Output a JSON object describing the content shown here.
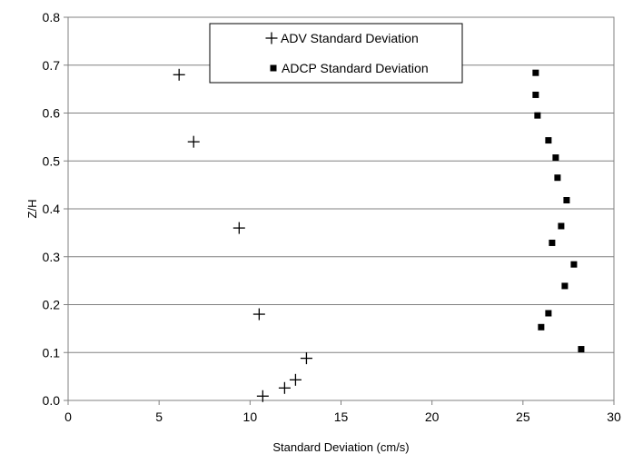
{
  "chart_data": {
    "type": "scatter",
    "title": "",
    "xlabel": "Standard Deviation (cm/s)",
    "ylabel": "Z/H",
    "xlim": [
      0,
      30
    ],
    "ylim": [
      0,
      0.8
    ],
    "xticks": [
      "0",
      "5",
      "10",
      "15",
      "20",
      "25",
      "30"
    ],
    "yticks": [
      "0.0",
      "0.1",
      "0.2",
      "0.3",
      "0.4",
      "0.5",
      "0.6",
      "0.7",
      "0.8"
    ],
    "grid": "horizontal",
    "legend_position": "top-center",
    "series": [
      {
        "name": "ADV Standard Deviation",
        "marker": "plus",
        "color": "#000000",
        "points": [
          [
            6.1,
            0.68
          ],
          [
            6.9,
            0.54
          ],
          [
            9.4,
            0.36
          ],
          [
            10.5,
            0.18
          ],
          [
            13.1,
            0.088
          ],
          [
            12.5,
            0.043
          ],
          [
            11.9,
            0.026
          ],
          [
            10.7,
            0.009
          ]
        ]
      },
      {
        "name": "ADCP Standard Deviation",
        "marker": "square",
        "color": "#000000",
        "points": [
          [
            25.7,
            0.684
          ],
          [
            25.7,
            0.638
          ],
          [
            25.8,
            0.595
          ],
          [
            26.4,
            0.543
          ],
          [
            26.8,
            0.507
          ],
          [
            26.9,
            0.465
          ],
          [
            27.4,
            0.418
          ],
          [
            27.1,
            0.364
          ],
          [
            26.6,
            0.329
          ],
          [
            27.8,
            0.284
          ],
          [
            27.3,
            0.239
          ],
          [
            26.4,
            0.182
          ],
          [
            26.0,
            0.153
          ],
          [
            28.2,
            0.107
          ]
        ]
      }
    ]
  }
}
